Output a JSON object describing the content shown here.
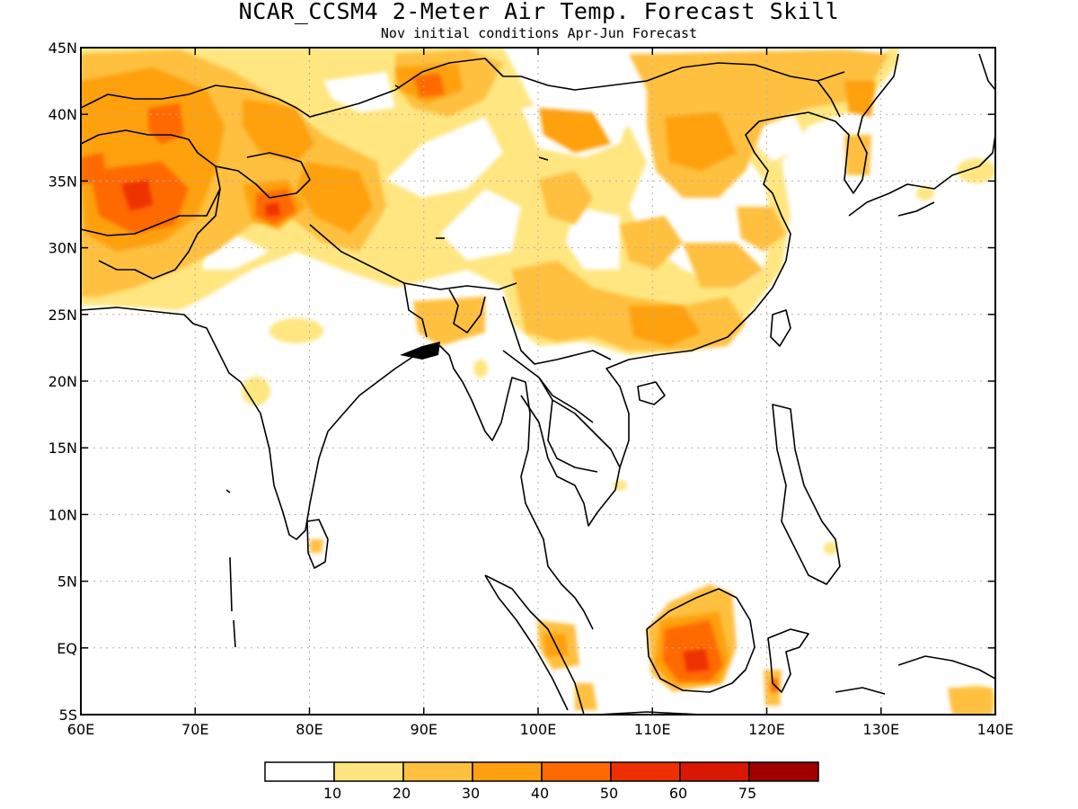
{
  "map": {
    "title": "NCAR_CCSM4 2-Meter Air Temp. Forecast Skill",
    "subtitle": "Nov initial conditions  Apr-Jun Forecast",
    "lat_ticks": [
      "45N",
      "40N",
      "35N",
      "30N",
      "25N",
      "20N",
      "15N",
      "10N",
      "5N",
      "EQ",
      "5S"
    ],
    "lon_ticks": [
      "60E",
      "70E",
      "80E",
      "90E",
      "100E",
      "110E",
      "120E",
      "130E",
      "140E"
    ],
    "extent": {
      "lon_min": 60,
      "lon_max": 140,
      "lat_min": -5,
      "lat_max": 45
    },
    "grid": "dotted",
    "legend": {
      "labels": [
        "10",
        "20",
        "30",
        "40",
        "50",
        "60",
        "75"
      ],
      "colors": [
        "#ffffff",
        "#ffe680",
        "#ffc040",
        "#ffa010",
        "#ff6a00",
        "#ee3000",
        "#d81800",
        "#a00000"
      ]
    }
  }
}
